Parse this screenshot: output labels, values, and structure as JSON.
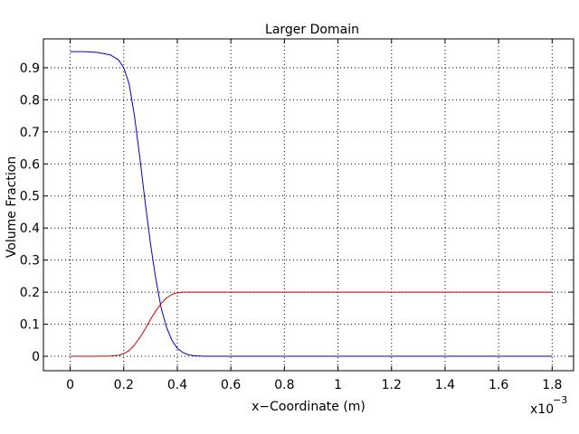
{
  "chart_data": {
    "type": "line",
    "title": "Larger Domain",
    "xlabel": "x−Coordinate (m)",
    "ylabel": "Volume Fraction",
    "x_multiplier_base": "x10",
    "x_multiplier_exponent": "−3",
    "xlim": [
      -0.1,
      1.88
    ],
    "ylim": [
      -0.045,
      0.99
    ],
    "x_ticks": [
      0,
      0.2,
      0.4,
      0.6,
      0.8,
      1.0,
      1.2,
      1.4,
      1.6,
      1.8
    ],
    "x_tick_labels": [
      "0",
      "0.2",
      "0.4",
      "0.6",
      "0.8",
      "1",
      "1.2",
      "1.4",
      "1.6",
      "1.8"
    ],
    "y_ticks": [
      0,
      0.1,
      0.2,
      0.3,
      0.4,
      0.5,
      0.6,
      0.7,
      0.8,
      0.9
    ],
    "y_tick_labels": [
      "0",
      "0.1",
      "0.2",
      "0.3",
      "0.4",
      "0.5",
      "0.6",
      "0.7",
      "0.8",
      "0.9"
    ],
    "grid": true,
    "series": [
      {
        "color": "#0000cc",
        "x": [
          0,
          0.05,
          0.1,
          0.15,
          0.18,
          0.2,
          0.22,
          0.24,
          0.26,
          0.28,
          0.3,
          0.32,
          0.34,
          0.36,
          0.38,
          0.4,
          0.42,
          0.44,
          0.46,
          0.5,
          0.6,
          0.8,
          1.0,
          1.2,
          1.4,
          1.6,
          1.8
        ],
        "y": [
          0.95,
          0.95,
          0.948,
          0.94,
          0.925,
          0.9,
          0.85,
          0.75,
          0.62,
          0.48,
          0.35,
          0.24,
          0.15,
          0.09,
          0.05,
          0.025,
          0.012,
          0.005,
          0.002,
          0,
          0,
          0,
          0,
          0,
          0,
          0,
          0
        ]
      },
      {
        "color": "#cc0000",
        "x": [
          0,
          0.1,
          0.15,
          0.18,
          0.2,
          0.22,
          0.24,
          0.26,
          0.28,
          0.3,
          0.32,
          0.34,
          0.36,
          0.38,
          0.4,
          0.42,
          0.44,
          0.5,
          0.6,
          0.8,
          1.0,
          1.2,
          1.4,
          1.6,
          1.8
        ],
        "y": [
          0,
          0,
          0.001,
          0.003,
          0.008,
          0.018,
          0.035,
          0.058,
          0.085,
          0.115,
          0.142,
          0.165,
          0.182,
          0.193,
          0.198,
          0.2,
          0.2,
          0.2,
          0.2,
          0.2,
          0.2,
          0.2,
          0.2,
          0.2,
          0.2
        ]
      }
    ]
  }
}
